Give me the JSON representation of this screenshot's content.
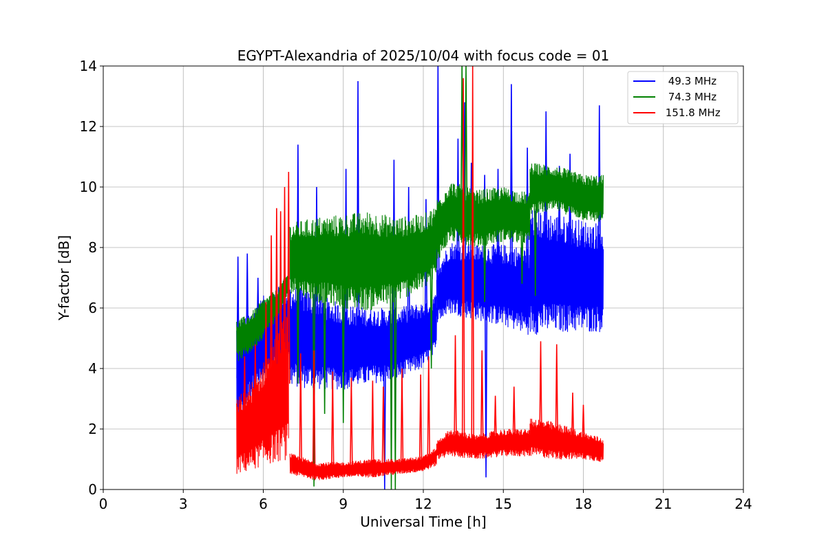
{
  "chart_data": {
    "type": "line",
    "title": "EGYPT-Alexandria of 2025/10/04 with focus code = 01",
    "xlabel": "Universal Time [h]",
    "ylabel": "Y-factor [dB]",
    "xlim": [
      0,
      24
    ],
    "ylim": [
      0,
      14
    ],
    "xticks": [
      "0",
      "3",
      "6",
      "9",
      "12",
      "15",
      "18",
      "21",
      "24"
    ],
    "yticks": [
      "0",
      "2",
      "4",
      "6",
      "8",
      "10",
      "12",
      "14"
    ],
    "grid": true,
    "legend_position": "top-right",
    "series": [
      {
        "name": " 49.3 MHz",
        "color": "#0000ff",
        "segments": [
          {
            "x": [
              5.0,
              5.5,
              6.0,
              6.5,
              7.0
            ],
            "low": [
              1.6,
              3.0,
              3.4,
              3.8,
              4.0
            ],
            "high": [
              5.6,
              5.9,
              6.4,
              6.7,
              6.8
            ]
          },
          {
            "x": [
              7.0,
              8.0,
              9.0,
              10.0,
              11.0,
              12.0,
              12.5
            ],
            "low": [
              3.4,
              3.3,
              3.3,
              3.5,
              3.6,
              4.0,
              4.5
            ],
            "high": [
              6.8,
              6.5,
              6.1,
              6.0,
              6.0,
              6.2,
              6.5
            ]
          },
          {
            "x": [
              12.5,
              13.0,
              14.0,
              15.0,
              16.0
            ],
            "low": [
              5.5,
              5.8,
              5.6,
              5.4,
              5.1
            ],
            "high": [
              7.4,
              8.2,
              8.1,
              8.1,
              8.0
            ]
          },
          {
            "x": [
              16.0,
              17.0,
              18.0,
              18.75
            ],
            "low": [
              5.1,
              5.2,
              5.2,
              5.2
            ],
            "high": [
              9.4,
              9.1,
              8.9,
              8.8
            ]
          }
        ],
        "spikes": [
          [
            5.05,
            7.7
          ],
          [
            5.4,
            7.8
          ],
          [
            5.8,
            7.0
          ],
          [
            7.3,
            11.4
          ],
          [
            8.0,
            10.0
          ],
          [
            9.1,
            10.6
          ],
          [
            9.55,
            13.5
          ],
          [
            10.55,
            0.0
          ],
          [
            10.9,
            10.9
          ],
          [
            11.45,
            10.0
          ],
          [
            12.1,
            9.6
          ],
          [
            12.55,
            14.0
          ],
          [
            13.3,
            11.6
          ],
          [
            13.55,
            12.8
          ],
          [
            13.8,
            10.8
          ],
          [
            14.3,
            10.4
          ],
          [
            14.35,
            0.4
          ],
          [
            14.8,
            10.6
          ],
          [
            15.3,
            13.4
          ],
          [
            15.9,
            11.3
          ],
          [
            16.6,
            12.5
          ],
          [
            17.1,
            10.7
          ],
          [
            17.5,
            11.1
          ],
          [
            18.6,
            12.7
          ]
        ]
      },
      {
        "name": " 74.3 MHz",
        "color": "#008000",
        "segments": [
          {
            "x": [
              5.0,
              5.5,
              6.0,
              6.5,
              6.95
            ],
            "low": [
              4.2,
              4.5,
              5.0,
              5.6,
              6.5
            ],
            "high": [
              5.6,
              5.8,
              6.3,
              6.6,
              7.2
            ]
          },
          {
            "x": [
              7.0,
              8.0,
              9.0,
              10.0,
              11.0,
              12.0,
              12.5
            ],
            "low": [
              6.5,
              6.2,
              6.0,
              5.9,
              6.2,
              6.6,
              7.0
            ],
            "high": [
              8.8,
              9.0,
              9.1,
              9.2,
              9.0,
              9.1,
              9.4
            ]
          },
          {
            "x": [
              12.5,
              13.0,
              14.0,
              15.0,
              16.0
            ],
            "low": [
              7.5,
              8.2,
              8.0,
              8.2,
              8.1
            ],
            "high": [
              9.6,
              10.2,
              9.9,
              10.0,
              9.8
            ]
          },
          {
            "x": [
              16.0,
              17.0,
              18.0,
              18.75
            ],
            "low": [
              9.1,
              9.2,
              8.9,
              8.8
            ],
            "high": [
              10.8,
              10.7,
              10.4,
              10.4
            ]
          }
        ],
        "spikes": [
          [
            7.3,
            3.5
          ],
          [
            7.9,
            0.1
          ],
          [
            8.3,
            2.5
          ],
          [
            9.0,
            2.2
          ],
          [
            10.8,
            0.0
          ],
          [
            10.95,
            0.0
          ],
          [
            12.3,
            4.0
          ],
          [
            13.45,
            14.0
          ],
          [
            13.6,
            14.0
          ],
          [
            14.3,
            6.2
          ],
          [
            15.7,
            6.8
          ],
          [
            16.2,
            6.4
          ]
        ]
      },
      {
        "name": " 151.8 MHz",
        "color": "#ff0000",
        "segments": [
          {
            "x": [
              5.0,
              5.5,
              6.0,
              6.5,
              6.95
            ],
            "low": [
              0.5,
              0.6,
              0.8,
              0.9,
              1.0
            ],
            "high": [
              3.0,
              3.5,
              4.2,
              5.2,
              6.0
            ]
          },
          {
            "x": [
              7.0,
              8.0,
              9.0,
              10.0,
              11.0,
              12.0,
              12.5
            ],
            "low": [
              0.5,
              0.3,
              0.4,
              0.4,
              0.5,
              0.6,
              0.8
            ],
            "high": [
              1.2,
              0.9,
              0.9,
              1.0,
              1.0,
              1.1,
              1.4
            ]
          },
          {
            "x": [
              12.5,
              13.0,
              14.0,
              15.0,
              16.0
            ],
            "low": [
              1.0,
              1.1,
              1.0,
              1.1,
              1.1
            ],
            "high": [
              1.6,
              2.0,
              1.8,
              2.0,
              2.0
            ]
          },
          {
            "x": [
              16.0,
              17.0,
              18.0,
              18.75
            ],
            "low": [
              1.1,
              1.0,
              1.0,
              0.9
            ],
            "high": [
              2.4,
              2.2,
              1.9,
              1.7
            ]
          }
        ],
        "spikes": [
          [
            5.3,
            4.4
          ],
          [
            5.7,
            4.8
          ],
          [
            6.1,
            6.2
          ],
          [
            6.3,
            8.4
          ],
          [
            6.5,
            9.3
          ],
          [
            6.65,
            9.2
          ],
          [
            6.8,
            10.0
          ],
          [
            6.95,
            10.5
          ],
          [
            7.4,
            4.5
          ],
          [
            7.9,
            4.6
          ],
          [
            8.6,
            3.9
          ],
          [
            9.3,
            3.7
          ],
          [
            10.1,
            3.6
          ],
          [
            10.5,
            3.4
          ],
          [
            11.2,
            4.0
          ],
          [
            11.9,
            3.8
          ],
          [
            12.2,
            4.4
          ],
          [
            13.2,
            5.1
          ],
          [
            13.5,
            13.6
          ],
          [
            13.85,
            14.0
          ],
          [
            14.2,
            4.6
          ],
          [
            14.7,
            3.1
          ],
          [
            15.4,
            3.4
          ],
          [
            16.4,
            4.9
          ],
          [
            17.0,
            4.8
          ],
          [
            17.6,
            3.2
          ],
          [
            18.0,
            2.8
          ]
        ]
      }
    ]
  }
}
